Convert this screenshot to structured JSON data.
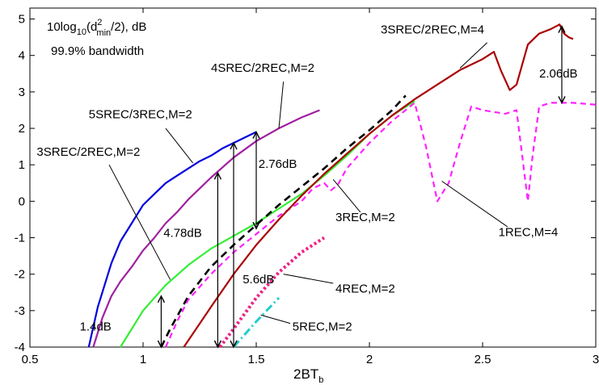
{
  "chart_data": {
    "type": "line",
    "xlabel": "2BT",
    "xlabel_sub": "b",
    "ylabel": "",
    "xlim": [
      0.5,
      3
    ],
    "ylim": [
      -4,
      5.3
    ],
    "xticks": [
      "0.5",
      "1",
      "1.5",
      "2",
      "2.5",
      "3"
    ],
    "yticks": [
      "5",
      "4",
      "3",
      "2",
      "1",
      "0",
      "-1",
      "-2",
      "-3",
      "-4"
    ],
    "grid": false,
    "notes": [
      {
        "id": "note1",
        "pre": "10log",
        "s1": "10",
        "mid": "(d",
        "sup": "2",
        "s2": "min",
        "post": "/2), dB"
      },
      {
        "id": "note2",
        "text": "99.9% bandwidth"
      }
    ],
    "series": [
      {
        "name": "5SREC/3REC,M=2",
        "color": "#0000dd",
        "dash": "",
        "width": 2.2,
        "x": [
          0.76,
          0.8,
          0.83,
          0.86,
          0.9,
          0.95,
          1.0,
          1.05,
          1.1,
          1.15,
          1.2,
          1.25,
          1.3,
          1.35,
          1.4,
          1.45,
          1.5
        ],
        "y": [
          -4.0,
          -2.9,
          -2.3,
          -1.7,
          -1.1,
          -0.6,
          -0.1,
          0.2,
          0.5,
          0.7,
          0.9,
          1.1,
          1.25,
          1.45,
          1.6,
          1.75,
          1.9
        ]
      },
      {
        "name": "4SREC/2REC,M=2",
        "color": "#a020a0",
        "dash": "",
        "width": 2.2,
        "x": [
          0.78,
          0.82,
          0.86,
          0.9,
          0.95,
          1.0,
          1.05,
          1.1,
          1.15,
          1.2,
          1.3,
          1.4,
          1.5,
          1.6,
          1.7,
          1.78
        ],
        "y": [
          -4.0,
          -3.2,
          -2.6,
          -2.2,
          -1.8,
          -1.35,
          -1.0,
          -0.6,
          -0.3,
          0.05,
          0.65,
          1.2,
          1.65,
          2.0,
          2.3,
          2.5
        ]
      },
      {
        "name": "3SREC/2REC,M=2",
        "color": "#33ee33",
        "dash": "",
        "width": 2.2,
        "x": [
          0.9,
          1.0,
          1.1,
          1.2,
          1.3,
          1.4,
          1.5,
          1.6,
          1.7,
          1.8,
          1.9,
          2.0,
          2.1,
          2.2
        ],
        "y": [
          -4.0,
          -3.0,
          -2.3,
          -1.75,
          -1.3,
          -0.95,
          -0.6,
          -0.2,
          0.2,
          0.7,
          1.25,
          1.85,
          2.35,
          2.75
        ]
      },
      {
        "name": "3REC,M=2",
        "color": "#000000",
        "dash": "9 6",
        "width": 2.6,
        "x": [
          1.08,
          1.12,
          1.2,
          1.3,
          1.4,
          1.5,
          1.6,
          1.7,
          1.8,
          1.9,
          2.0,
          2.1,
          2.16
        ],
        "y": [
          -4.0,
          -3.5,
          -2.6,
          -1.8,
          -1.2,
          -0.65,
          -0.1,
          0.4,
          0.9,
          1.45,
          1.95,
          2.5,
          2.9
        ]
      },
      {
        "name": "1REC,M=4",
        "color": "#ff22ff",
        "dash": "7 5",
        "width": 2.2,
        "x": [
          1.1,
          1.15,
          1.2,
          1.3,
          1.4,
          1.5,
          1.6,
          1.7,
          1.75,
          1.8,
          1.83,
          1.86,
          1.9,
          2.0,
          2.1,
          2.2,
          2.25,
          2.3,
          2.35,
          2.4,
          2.45,
          2.5,
          2.55,
          2.6,
          2.65,
          2.68,
          2.7,
          2.72,
          2.75,
          2.8,
          2.9,
          3.0
        ],
        "y": [
          -4.0,
          -3.3,
          -2.7,
          -2.0,
          -1.4,
          -0.9,
          -0.4,
          0.0,
          0.35,
          0.5,
          0.3,
          0.45,
          0.9,
          1.6,
          2.2,
          2.7,
          1.5,
          0.0,
          0.5,
          1.6,
          2.6,
          2.5,
          2.45,
          2.4,
          2.5,
          1.0,
          0.0,
          1.2,
          2.6,
          2.7,
          2.7,
          2.65
        ]
      },
      {
        "name": "3SREC/2REC,M=4",
        "color": "#aa0000",
        "dash": "",
        "width": 2.2,
        "x": [
          1.18,
          1.3,
          1.4,
          1.5,
          1.6,
          1.7,
          1.8,
          1.9,
          2.0,
          2.1,
          2.2,
          2.3,
          2.4,
          2.5,
          2.55,
          2.58,
          2.62,
          2.65,
          2.7,
          2.75,
          2.8,
          2.84,
          2.86,
          2.88,
          2.9
        ],
        "y": [
          -4.0,
          -2.9,
          -2.0,
          -1.2,
          -0.5,
          0.15,
          0.75,
          1.3,
          1.85,
          2.35,
          2.8,
          3.2,
          3.6,
          3.9,
          4.1,
          3.6,
          3.05,
          3.2,
          4.3,
          4.6,
          4.72,
          4.85,
          4.6,
          4.5,
          4.45
        ]
      },
      {
        "name": "4REC,M=2",
        "color": "#ee2288",
        "dash": "3 3",
        "width": 4,
        "x": [
          1.34,
          1.4,
          1.5,
          1.6,
          1.7,
          1.8
        ],
        "y": [
          -4.0,
          -3.5,
          -2.65,
          -1.95,
          -1.4,
          -1.0
        ]
      },
      {
        "name": "5REC,M=2",
        "color": "#22cccc",
        "dash": "10 4 2 4",
        "width": 3,
        "x": [
          1.4,
          1.5,
          1.6
        ],
        "y": [
          -4.0,
          -3.3,
          -2.65
        ]
      }
    ],
    "annotations": [
      {
        "text": "2.06dB",
        "x1": 2.85,
        "y1": 4.8,
        "x2": 2.85,
        "y2": 2.7,
        "label_x": 2.75,
        "label_y": 3.4
      },
      {
        "text": "2.76dB",
        "x1": 1.5,
        "y1": 1.9,
        "x2": 1.5,
        "y2": -0.75,
        "label_x": 1.51,
        "label_y": 0.92
      },
      {
        "text": "4.78dB",
        "x1": 1.33,
        "y1": 0.78,
        "x2": 1.33,
        "y2": -4.0,
        "label_x": 1.09,
        "label_y": -0.98
      },
      {
        "text": "5.6dB",
        "x1": 1.4,
        "y1": 1.6,
        "x2": 1.4,
        "y2": -4.0,
        "label_x": 1.44,
        "label_y": -2.25
      },
      {
        "text": "1.4dB",
        "x1": 1.08,
        "y1": -2.6,
        "x2": 1.08,
        "y2": -4.0,
        "label_x": 0.72,
        "label_y": -3.55
      }
    ],
    "labels": [
      {
        "text": "3SREC/2REC,M=4",
        "x": 2.05,
        "y": 4.6,
        "px": 2.52,
        "py": 4.35,
        "lx": 2.4,
        "ly": 3.65
      },
      {
        "text": "4SREC/2REC,M=2",
        "x": 1.3,
        "y": 3.55,
        "px": 1.62,
        "py": 3.28,
        "lx": 1.6,
        "ly": 2.0
      },
      {
        "text": "5SREC/3REC,M=2",
        "x": 0.76,
        "y": 2.28,
        "px": 1.1,
        "py": 2.0,
        "lx": 1.22,
        "ly": 1.05
      },
      {
        "text": "3SREC/2REC,M=2",
        "x": 0.53,
        "y": 1.25,
        "px": 0.85,
        "py": 1.0,
        "lx": 1.12,
        "ly": -2.15
      },
      {
        "text": "3REC,M=2",
        "x": 1.85,
        "y": -0.55,
        "px": 1.96,
        "py": -0.3,
        "lx": 1.84,
        "ly": 0.6
      },
      {
        "text": "1REC,M=4",
        "x": 2.57,
        "y": -0.95,
        "px": 2.61,
        "py": -0.7,
        "lx": 2.32,
        "ly": 0.55
      },
      {
        "text": "4REC,M=2",
        "x": 1.85,
        "y": -2.5,
        "px": 1.84,
        "py": -2.25,
        "lx": 1.62,
        "ly": -2.0
      },
      {
        "text": "5REC,M=2",
        "x": 1.66,
        "y": -3.55,
        "px": 1.65,
        "py": -3.35,
        "lx": 1.52,
        "ly": -3.12
      }
    ]
  }
}
